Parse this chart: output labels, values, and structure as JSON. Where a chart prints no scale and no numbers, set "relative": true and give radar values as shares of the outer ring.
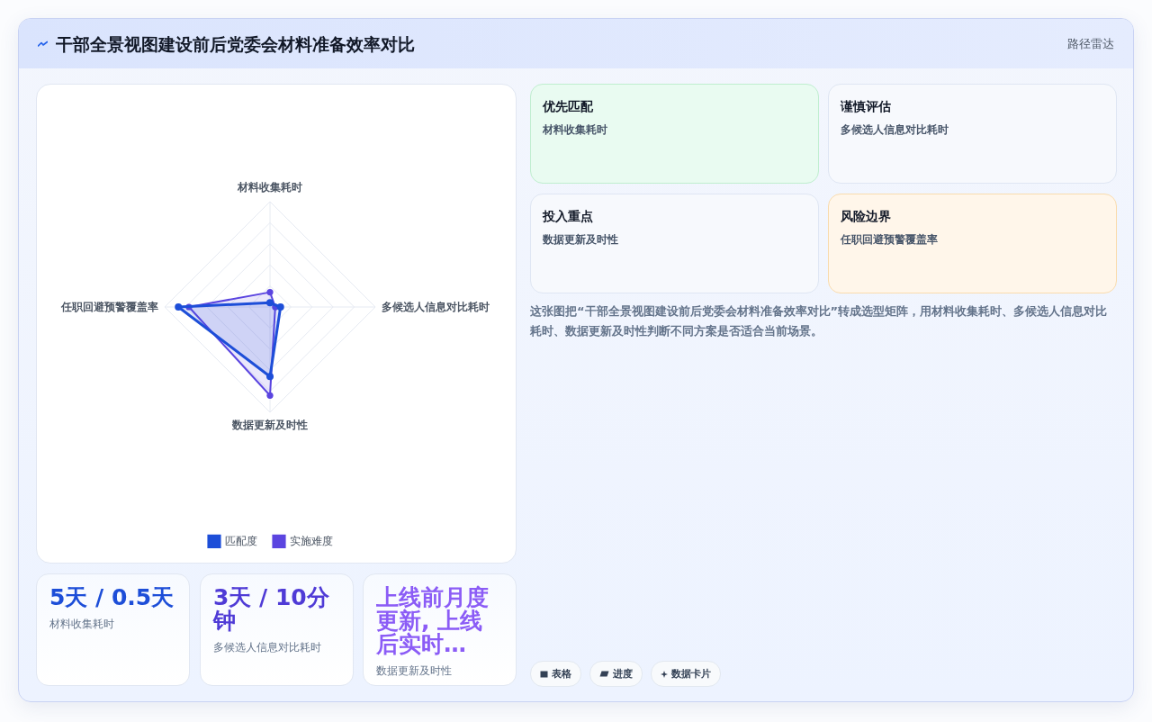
{
  "chart_data": [
    {
      "type": "other",
      "title": "干部全景视图建设前后党委会材料准备效率对比",
      "subtitle": "路径雷达"
    },
    {
      "type": "radar",
      "categories": [
        "材料收集耗时",
        "多候选人信息对比耗时",
        "数据更新及时性",
        "任职回避预警覆盖率"
      ],
      "series": [
        {
          "name": "匹配度",
          "color": "#1d4ed8",
          "values": [
            0.04,
            0.1,
            0.66,
            0.87
          ]
        },
        {
          "name": "实施难度",
          "color": "#5b45e0",
          "values": [
            0.14,
            0.05,
            0.84,
            0.77
          ]
        }
      ],
      "relative": true,
      "grid": true,
      "legend": "bottom",
      "marker": "circle"
    },
    {
      "type": "other",
      "title": "5天 / 0.5天",
      "subtitle": "材料收集耗时"
    },
    {
      "type": "other",
      "title": "3天 / 10分钟",
      "subtitle": "多候选人信息对比耗时"
    },
    {
      "type": "other",
      "title": "上线前月度更新, 上线后实时…",
      "subtitle": "数据更新及时性"
    },
    {
      "type": "other",
      "title": "优先匹配",
      "subtitle": "材料收集耗时"
    },
    {
      "type": "other",
      "title": "谨慎评估",
      "subtitle": "多候选人信息对比耗时"
    },
    {
      "type": "other",
      "title": "投入重点",
      "subtitle": "数据更新及时性"
    },
    {
      "type": "other",
      "title": "风险边界",
      "subtitle": "任职回避预警覆盖率"
    },
    {
      "type": "other",
      "annotations": [
        "这张图把“干部全景视图建设前后党委会材料准备效率对比”转成选型矩阵，用材料收集耗时、多候选人信息对比耗时、数据更新及时性判断不同方案是否适合当前场景。",
        "表格",
        "进度",
        "数据卡片"
      ]
    }
  ]
}
